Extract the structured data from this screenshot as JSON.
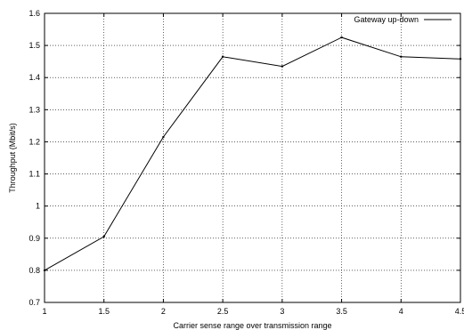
{
  "chart_data": {
    "type": "line",
    "xlabel": "Carrier sense range over transmission range",
    "ylabel": "Throughput (Mbit/s)",
    "xlim": [
      1,
      4.5
    ],
    "ylim": [
      0.7,
      1.6
    ],
    "x_ticks": [
      "1",
      "1.5",
      "2",
      "2.5",
      "3",
      "3.5",
      "4",
      "4.5"
    ],
    "y_ticks": [
      "0.7",
      "0.8",
      "0.9",
      "1",
      "1.1",
      "1.2",
      "1.3",
      "1.4",
      "1.5",
      "1.6"
    ],
    "grid": true,
    "legend_position": "top-right",
    "series": [
      {
        "name": "Gateway up-down",
        "color": "#000000",
        "x": [
          1,
          1.5,
          2,
          2.5,
          3,
          3.5,
          4,
          4.5
        ],
        "y": [
          0.8,
          0.905,
          1.215,
          1.465,
          1.435,
          1.525,
          1.465,
          1.458
        ]
      }
    ]
  }
}
